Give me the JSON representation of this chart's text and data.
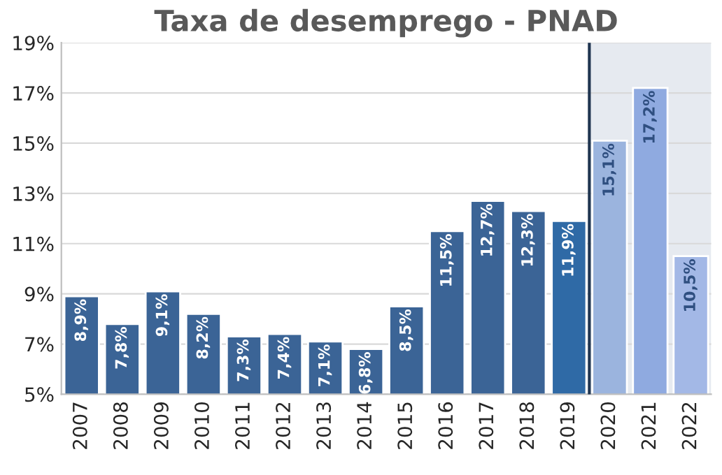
{
  "chart_data": {
    "type": "bar",
    "title": "Taxa de desemprego - PNAD",
    "x": [
      2007,
      2008,
      2009,
      2010,
      2011,
      2012,
      2013,
      2014,
      2015,
      2016,
      2017,
      2018,
      2019,
      2020,
      2021,
      2022
    ],
    "values": [
      8.9,
      7.8,
      9.1,
      8.2,
      7.3,
      7.4,
      7.1,
      6.8,
      8.5,
      11.5,
      12.7,
      12.3,
      11.9,
      15.1,
      17.2,
      10.5
    ],
    "value_labels": [
      "8,9%",
      "7,8%",
      "9,1%",
      "8,2%",
      "7,3%",
      "7,4%",
      "7,1%",
      "6,8%",
      "8,5%",
      "11,5%",
      "12,7%",
      "12,3%",
      "11,9%",
      "15,1%",
      "17,2%",
      "10,5%"
    ],
    "colors": [
      "#3b6496",
      "#3b6496",
      "#3b6496",
      "#3b6496",
      "#3b6496",
      "#3b6496",
      "#3b6496",
      "#3b6496",
      "#3b6496",
      "#3b6496",
      "#3b6496",
      "#3b6496",
      "#2f6aa6",
      "#9bb4de",
      "#8faae0",
      "#a3b8e6"
    ],
    "xlim": [
      2006.5,
      2022.5
    ],
    "xticks": [
      2007,
      2008,
      2009,
      2010,
      2011,
      2012,
      2013,
      2014,
      2015,
      2016,
      2017,
      2018,
      2019,
      2020,
      2021,
      2022
    ],
    "ylim": [
      5,
      19
    ],
    "yticks": [
      {
        "value": 5,
        "label": "5%"
      },
      {
        "value": 7,
        "label": "7%"
      },
      {
        "value": 9,
        "label": "9%"
      },
      {
        "value": 11,
        "label": "11%"
      },
      {
        "value": 13,
        "label": "13%"
      },
      {
        "value": 15,
        "label": "15%"
      },
      {
        "value": 17,
        "label": "17%"
      },
      {
        "value": 19,
        "label": "19%"
      }
    ],
    "ref_lines": [
      {
        "axis": "x",
        "value": 2019.5,
        "label": null,
        "color": "#1f3550"
      }
    ],
    "bands": [
      {
        "axis": "x",
        "from": 2019.5,
        "to": 2022.5,
        "label": null,
        "color": "#e6eaf0"
      }
    ],
    "grid": "y"
  }
}
